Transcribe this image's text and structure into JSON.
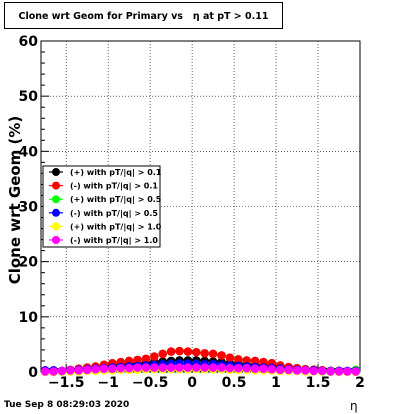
{
  "title": "Clone wrt Geom for Primary vs   η at pT > 0.11",
  "timestamp": "Tue Sep  8 08:29:03 2020",
  "chart_data": {
    "type": "scatter",
    "title": "Clone wrt Geom for Primary vs   η at pT > 0.11",
    "xlabel": "η",
    "ylabel": "Clone wrt Geom (%)",
    "xlim": [
      -1.8,
      2.0
    ],
    "ylim": [
      0,
      60
    ],
    "xticks": [
      -1.5,
      -1,
      -0.5,
      0,
      0.5,
      1,
      1.5,
      2
    ],
    "xtick_labels": [
      "−1.5",
      "−1",
      "−0.5",
      "0",
      "0.5",
      "1",
      "1.5",
      "2"
    ],
    "yticks": [
      0,
      10,
      20,
      30,
      40,
      50,
      60
    ],
    "ytick_labels": [
      "0",
      "10",
      "20",
      "30",
      "40",
      "50",
      "60"
    ],
    "grid": true,
    "legend_position": "left-middle",
    "x": [
      -1.75,
      -1.65,
      -1.55,
      -1.45,
      -1.35,
      -1.25,
      -1.15,
      -1.05,
      -0.95,
      -0.85,
      -0.75,
      -0.65,
      -0.55,
      -0.45,
      -0.35,
      -0.25,
      -0.15,
      -0.05,
      0.05,
      0.15,
      0.25,
      0.35,
      0.45,
      0.55,
      0.65,
      0.75,
      0.85,
      0.95,
      1.05,
      1.15,
      1.25,
      1.35,
      1.45,
      1.55,
      1.65,
      1.75,
      1.85,
      1.95
    ],
    "series": [
      {
        "name": "(+) with pT/|q| > 0.1",
        "color": "#000000",
        "values": [
          0.1,
          0.1,
          0.1,
          0.3,
          0.5,
          0.6,
          0.8,
          1.0,
          1.1,
          1.2,
          1.4,
          1.5,
          1.6,
          1.8,
          1.9,
          2.0,
          2.1,
          2.1,
          2.1,
          2.0,
          1.9,
          1.8,
          1.6,
          1.5,
          1.4,
          1.2,
          1.1,
          1.0,
          0.9,
          0.8,
          0.6,
          0.5,
          0.4,
          0.3,
          0.2,
          0.2,
          0.1,
          0.1
        ]
      },
      {
        "name": "(-) with pT/|q| > 0.1",
        "color": "#ff0000",
        "values": [
          0.2,
          0.2,
          0.2,
          0.4,
          0.6,
          0.8,
          1.0,
          1.3,
          1.6,
          1.8,
          2.0,
          2.2,
          2.4,
          2.8,
          3.3,
          3.7,
          3.8,
          3.7,
          3.6,
          3.4,
          3.3,
          3.0,
          2.6,
          2.3,
          2.1,
          2.0,
          1.8,
          1.6,
          1.2,
          0.9,
          0.7,
          0.5,
          0.4,
          0.3,
          0.2,
          0.2,
          0.1,
          0.1
        ]
      },
      {
        "name": "(+) with pT/|q| > 0.5",
        "color": "#00ff00",
        "values": [
          0.0,
          0.0,
          0.1,
          0.1,
          0.2,
          0.3,
          0.4,
          0.5,
          0.5,
          0.6,
          0.7,
          0.7,
          0.8,
          0.8,
          0.9,
          0.9,
          0.9,
          0.9,
          0.9,
          0.9,
          0.8,
          0.8,
          0.8,
          0.7,
          0.7,
          0.6,
          0.5,
          0.5,
          0.4,
          0.3,
          0.3,
          0.2,
          0.2,
          0.1,
          0.1,
          0.1,
          0.1,
          0.4
        ]
      },
      {
        "name": "(-) with pT/|q| > 0.5",
        "color": "#0000ff",
        "values": [
          0.3,
          0.3,
          0.2,
          0.3,
          0.4,
          0.5,
          0.6,
          0.7,
          0.8,
          0.9,
          1.0,
          1.1,
          1.2,
          1.3,
          1.4,
          1.5,
          1.5,
          1.5,
          1.5,
          1.4,
          1.4,
          1.3,
          1.2,
          1.1,
          1.0,
          0.9,
          0.8,
          0.7,
          0.6,
          0.5,
          0.4,
          0.3,
          0.3,
          0.2,
          0.2,
          0.2,
          0.2,
          0.2
        ]
      },
      {
        "name": "(+) with pT/|q| > 1.0",
        "color": "#ffff00",
        "values": [
          0.0,
          0.0,
          0.1,
          0.1,
          0.1,
          0.2,
          0.2,
          0.3,
          0.3,
          0.4,
          0.4,
          0.4,
          0.5,
          0.5,
          0.5,
          0.5,
          0.5,
          0.5,
          0.5,
          0.5,
          0.5,
          0.5,
          0.4,
          0.4,
          0.4,
          0.3,
          0.3,
          0.3,
          0.2,
          0.2,
          0.2,
          0.1,
          0.1,
          0.1,
          0.1,
          0.0,
          0.0,
          0.0
        ]
      },
      {
        "name": "(-) with pT/|q| > 1.0",
        "color": "#ff00ff",
        "values": [
          0.1,
          0.1,
          0.2,
          0.3,
          0.3,
          0.4,
          0.5,
          0.6,
          0.6,
          0.7,
          0.7,
          0.8,
          0.8,
          0.8,
          0.8,
          0.8,
          0.8,
          0.8,
          0.8,
          0.8,
          0.8,
          0.8,
          0.7,
          0.7,
          0.7,
          0.6,
          0.6,
          0.5,
          0.4,
          0.4,
          0.3,
          0.3,
          0.2,
          0.2,
          0.1,
          0.1,
          0.1,
          0.1
        ]
      }
    ]
  }
}
